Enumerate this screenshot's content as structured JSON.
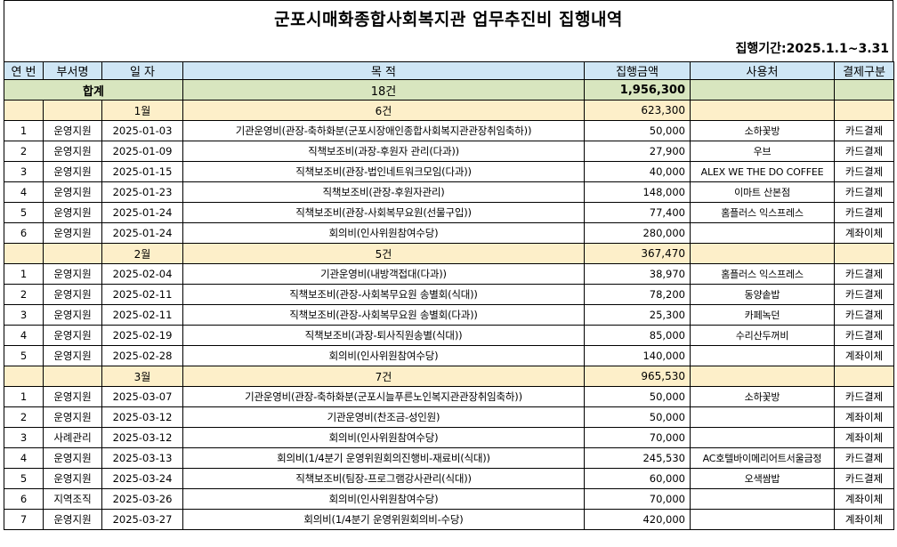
{
  "title": "군포시매화종합사회복지관 업무추진비 집행내역",
  "period": "집행기간:2025.1.1~3.31",
  "headers": [
    "연 번",
    "부서명",
    "일  자",
    "목       적",
    "집행금액",
    "사용처",
    "결제구분"
  ],
  "total": {
    "label": "합계",
    "count": "18건",
    "amount": "1,956,300"
  },
  "groups": [
    {
      "month": "1월",
      "count": "6건",
      "amount": "623,300",
      "rows": [
        {
          "no": "1",
          "dept": "운영지원",
          "date": "2025-01-03",
          "purpose": "기관운영비(관장-축하화분(군포시장애인종합사회복지관관장취임축하))",
          "amount": "50,000",
          "vendor": "소하꽃방",
          "pay": "카드결제"
        },
        {
          "no": "2",
          "dept": "운영지원",
          "date": "2025-01-09",
          "purpose": "직책보조비(과장-후원자 관리(다과))",
          "amount": "27,900",
          "vendor": "우브",
          "pay": "카드결제"
        },
        {
          "no": "3",
          "dept": "운영지원",
          "date": "2025-01-15",
          "purpose": "직책보조비(관장-법인네트워크모임(다과))",
          "amount": "40,000",
          "vendor": "ALEX WE THE DO COFFEE",
          "pay": "카드결제"
        },
        {
          "no": "4",
          "dept": "운영지원",
          "date": "2025-01-23",
          "purpose": "직책보조비(관장-후원자관리)",
          "amount": "148,000",
          "vendor": "이마트 산본점",
          "pay": "카드결제"
        },
        {
          "no": "5",
          "dept": "운영지원",
          "date": "2025-01-24",
          "purpose": "직책보조비(관장-사회복무요원(선물구입))",
          "amount": "77,400",
          "vendor": "홈플러스 익스프레스",
          "pay": "카드결제"
        },
        {
          "no": "6",
          "dept": "운영지원",
          "date": "2025-01-24",
          "purpose": "회의비(인사위원참여수당)",
          "amount": "280,000",
          "vendor": "",
          "pay": "계좌이체"
        }
      ]
    },
    {
      "month": "2월",
      "count": "5건",
      "amount": "367,470",
      "rows": [
        {
          "no": "1",
          "dept": "운영지원",
          "date": "2025-02-04",
          "purpose": "기관운영비(내방객접대(다과))",
          "amount": "38,970",
          "vendor": "홈플러스 익스프레스",
          "pay": "카드결제"
        },
        {
          "no": "2",
          "dept": "운영지원",
          "date": "2025-02-11",
          "purpose": "직책보조비(관장-사회복무요원 송별회(식대))",
          "amount": "78,200",
          "vendor": "동양솥밥",
          "pay": "카드결제"
        },
        {
          "no": "3",
          "dept": "운영지원",
          "date": "2025-02-11",
          "purpose": "직책보조비(관장-사회복무요원 송별회(다과))",
          "amount": "25,300",
          "vendor": "카페녹던",
          "pay": "카드결제"
        },
        {
          "no": "4",
          "dept": "운영지원",
          "date": "2025-02-19",
          "purpose": "직책보조비(과장-퇴사직원송별(식대))",
          "amount": "85,000",
          "vendor": "수리산두꺼비",
          "pay": "카드결제"
        },
        {
          "no": "5",
          "dept": "운영지원",
          "date": "2025-02-28",
          "purpose": "회의비(인사위원참여수당)",
          "amount": "140,000",
          "vendor": "",
          "pay": "계좌이체"
        }
      ]
    },
    {
      "month": "3월",
      "count": "7건",
      "amount": "965,530",
      "rows": [
        {
          "no": "1",
          "dept": "운영지원",
          "date": "2025-03-07",
          "purpose": "기관운영비(관장-축하화분(군포시늘푸른노인복지관관장취임축하))",
          "amount": "50,000",
          "vendor": "소하꽃방",
          "pay": "카드결제"
        },
        {
          "no": "2",
          "dept": "운영지원",
          "date": "2025-03-12",
          "purpose": "기관운영비(찬조금-성인원)",
          "amount": "50,000",
          "vendor": "",
          "pay": "계좌이체"
        },
        {
          "no": "3",
          "dept": "사례관리",
          "date": "2025-03-12",
          "purpose": "회의비(인사위원참여수당)",
          "amount": "70,000",
          "vendor": "",
          "pay": "계좌이체"
        },
        {
          "no": "4",
          "dept": "운영지원",
          "date": "2025-03-13",
          "purpose": "회의비(1/4분기 운영위원회의진행비-재료비(식대))",
          "amount": "245,530",
          "vendor": "AC호텔바이메리어트서울금정",
          "pay": "카드결제"
        },
        {
          "no": "5",
          "dept": "운영지원",
          "date": "2025-03-24",
          "purpose": "직책보조비(팀장-프로그램강사관리(식대))",
          "amount": "60,000",
          "vendor": "오색쌈밥",
          "pay": "카드결제"
        },
        {
          "no": "6",
          "dept": "지역조직",
          "date": "2025-03-26",
          "purpose": "회의비(인사위원참여수당)",
          "amount": "70,000",
          "vendor": "",
          "pay": "계좌이체"
        },
        {
          "no": "7",
          "dept": "운영지원",
          "date": "2025-03-27",
          "purpose": "회의비(1/4분기 운영위원회의비-수당)",
          "amount": "420,000",
          "vendor": "",
          "pay": "계좌이체"
        }
      ]
    }
  ]
}
